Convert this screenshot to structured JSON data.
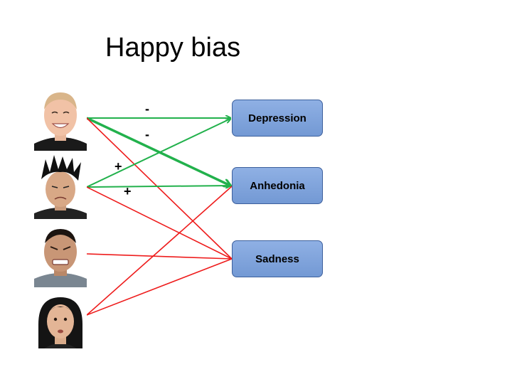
{
  "title": "Happy bias",
  "nodes": {
    "depression": "Depression",
    "anhedonia": "Anhedonia",
    "sadness": "Sadness"
  },
  "signs": [
    "-",
    "-",
    "+",
    "+"
  ],
  "colors": {
    "positive_edge": "#22b14c",
    "negative_edge": "#ee1c1c",
    "box_fill": "#7ea3dc",
    "box_border": "#3c5f9c"
  },
  "faces": [
    "happy-face",
    "sad-face",
    "angry-face",
    "fearful-face"
  ]
}
